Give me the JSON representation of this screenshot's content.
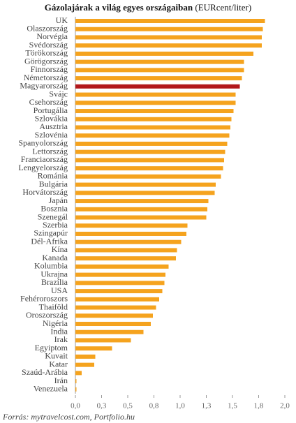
{
  "chart_data": {
    "type": "bar",
    "orientation": "horizontal",
    "title": "Gázolajárak a világ egyes országaiban",
    "subtitle": "(EURcent/liter)",
    "source": "Forrás: mytravelcost.com, Portfolio.hu",
    "categories": [
      "UK",
      "Olaszország",
      "Norvégia",
      "Svédország",
      "Törökország",
      "Görögország",
      "Finnország",
      "Németország",
      "Magyarország",
      "Svájc",
      "Csehország",
      "Portugália",
      "Szlovákia",
      "Ausztria",
      "Szlovénia",
      "Spanyolország",
      "Lettország",
      "Franciaország",
      "Lengyelország",
      "Románia",
      "Bulgária",
      "Horvátország",
      "Japán",
      "Bosznia",
      "Szenegál",
      "Szerbia",
      "Szingapúr",
      "Dél-Afrika",
      "Kína",
      "Kanada",
      "Kolumbia",
      "Ukrajna",
      "Brazília",
      "USA",
      "Fehéroroszors",
      "Thaiföld",
      "Oroszország",
      "Nigéria",
      "India",
      "Irak",
      "Egyiptom",
      "Kuvait",
      "Katar",
      "Szaúd-Arábia",
      "Irán",
      "Venezuela"
    ],
    "values": [
      1.81,
      1.79,
      1.78,
      1.78,
      1.7,
      1.61,
      1.61,
      1.59,
      1.57,
      1.53,
      1.53,
      1.51,
      1.49,
      1.48,
      1.47,
      1.45,
      1.43,
      1.42,
      1.41,
      1.39,
      1.34,
      1.33,
      1.27,
      1.26,
      1.25,
      1.07,
      1.06,
      1.01,
      0.97,
      0.96,
      0.89,
      0.86,
      0.85,
      0.83,
      0.8,
      0.77,
      0.74,
      0.72,
      0.65,
      0.53,
      0.35,
      0.19,
      0.18,
      0.06,
      0.01,
      0.01
    ],
    "color": "#f5a31e",
    "highlight_category": "Magyarország",
    "highlight_color": "#b2181b",
    "xlim": [
      0,
      2
    ],
    "xticks": [
      {
        "value": 0,
        "label": "0,0"
      },
      {
        "value": 0.25,
        "label": "0,3"
      },
      {
        "value": 0.5,
        "label": "0,5"
      },
      {
        "value": 0.75,
        "label": "0,8"
      },
      {
        "value": 1,
        "label": "1,0"
      },
      {
        "value": 1.25,
        "label": "1,3"
      },
      {
        "value": 1.5,
        "label": "1,5"
      },
      {
        "value": 1.75,
        "label": "1,8"
      },
      {
        "value": 2,
        "label": "2,0"
      }
    ]
  }
}
